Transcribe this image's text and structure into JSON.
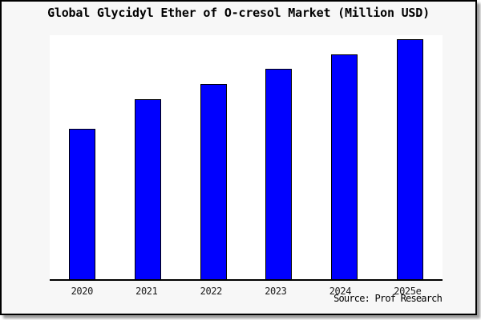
{
  "chart": {
    "title": "Global Glycidyl Ether of O-cresol Market (Million USD)",
    "source_caption": "Source: Prof Research",
    "colors": {
      "bar_fill": "#0000ff",
      "bar_border": "#000000",
      "plot_background": "#ffffff",
      "card_background": "#f7f7f7",
      "frame_border": "#000000",
      "frame_shadow": "#9a9a9a",
      "text": "#000000"
    }
  },
  "chart_data": {
    "type": "bar",
    "title": "Global Glycidyl Ether of O-cresol Market (Million USD)",
    "categories": [
      "2020",
      "2021",
      "2022",
      "2023",
      "2024",
      "2025e"
    ],
    "values": [
      62.7,
      75.0,
      81.3,
      87.7,
      93.7,
      100.0
    ],
    "value_note": "No y-axis ticks or data labels are shown in the chart; values are bar heights measured relative to the tallest bar (2025e = 100).",
    "xlabel": "",
    "ylabel": "",
    "ylim": [
      0,
      100
    ],
    "grid": false,
    "legend": "none",
    "annotations": [
      "Source: Prof Research"
    ]
  }
}
